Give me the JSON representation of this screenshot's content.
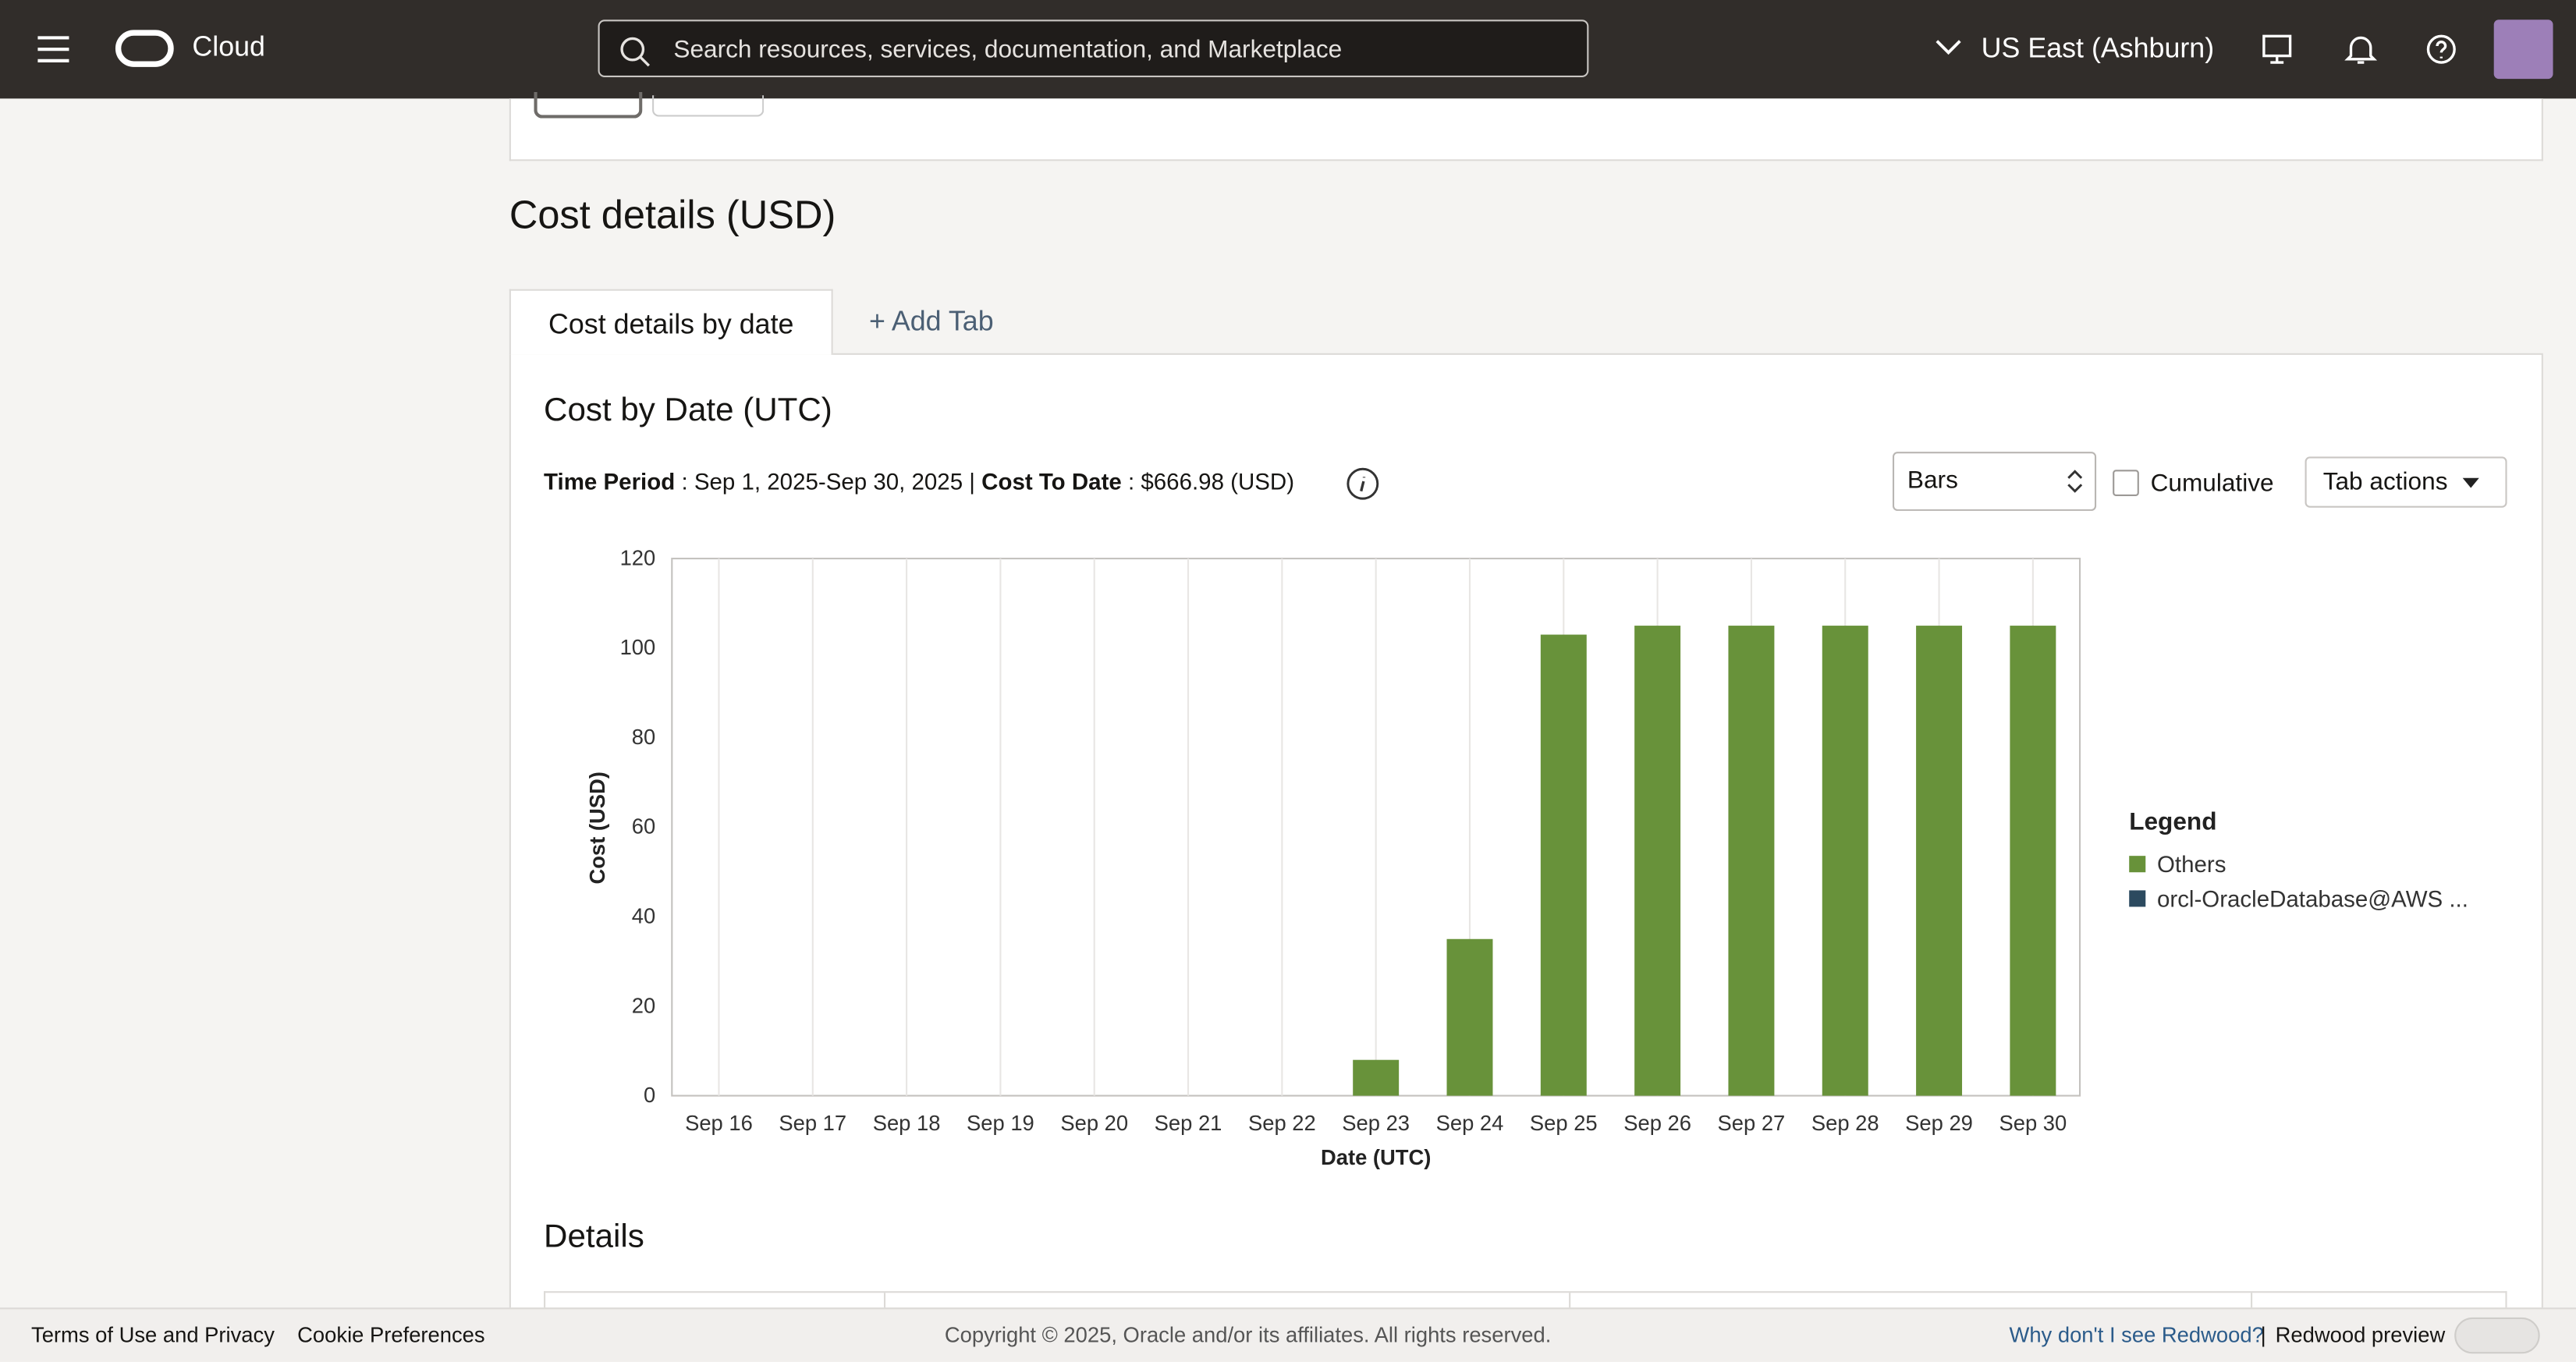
{
  "header": {
    "brand": "Cloud",
    "search_placeholder": "Search resources, services, documentation, and Marketplace",
    "region": "US East (Ashburn)"
  },
  "page": {
    "section_title": "Cost details (USD)",
    "tabs": [
      "Cost details by date",
      "+ Add Tab"
    ],
    "chart_title": "Cost by Date (UTC)",
    "time_period_label": "Time Period",
    "time_period_value": ": Sep 1, 2025-Sep 30, 2025 |",
    "cost_to_date_label": "Cost To Date",
    "cost_to_date_value": ": $666.98 (USD)",
    "chart_style": "Bars",
    "cumulative": "Cumulative",
    "tab_actions": "Tab actions",
    "details_title": "Details"
  },
  "chart_data": {
    "type": "bar",
    "stacked": true,
    "x_label": "Date (UTC)",
    "y_label": "Cost (USD)",
    "legend_title": "Legend",
    "categories": [
      "Sep 16",
      "Sep 17",
      "Sep 18",
      "Sep 19",
      "Sep 20",
      "Sep 21",
      "Sep 22",
      "Sep 23",
      "Sep 24",
      "Sep 25",
      "Sep 26",
      "Sep 27",
      "Sep 28",
      "Sep 29",
      "Sep 30"
    ],
    "series": [
      {
        "name": "Others",
        "color": "#68923a",
        "values": [
          0,
          0,
          0,
          0,
          0,
          0,
          0,
          8,
          35,
          103,
          105,
          105,
          105,
          105,
          105
        ]
      },
      {
        "name": "orcl-OracleDatabase@AWS ...",
        "color": "#2c4a5f",
        "values": [
          0,
          0,
          0,
          0,
          0,
          0,
          0,
          0,
          0,
          0,
          0,
          0,
          0,
          0,
          0
        ]
      }
    ],
    "ylim": [
      0,
      120
    ],
    "yticks": [
      0,
      20,
      40,
      60,
      80,
      100,
      120
    ],
    "grid": true
  },
  "footer": {
    "terms": "Terms of Use and Privacy",
    "cookies": "Cookie Preferences",
    "copyright": "Copyright © 2025, Oracle and/or its affiliates. All rights reserved.",
    "redwood_question": "Why don't I see Redwood?",
    "separator": "|",
    "redwood_preview": "Redwood preview"
  }
}
